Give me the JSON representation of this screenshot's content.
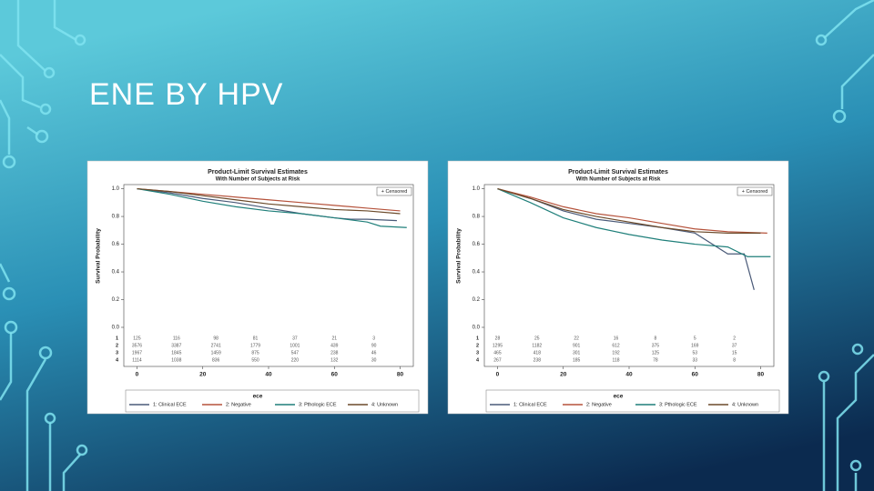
{
  "slide": {
    "title": "ENE BY HPV"
  },
  "chart_data": [
    {
      "type": "line",
      "title": "Product-Limit Survival Estimates",
      "subtitle": "With Number of Subjects at Risk",
      "y_label": "Survival Probability",
      "legend_title": "ece",
      "censored_label": "+ Censored",
      "xlim": [
        -4,
        84
      ],
      "xticks": [
        0,
        20,
        40,
        60,
        80
      ],
      "ylim": [
        0,
        1.03
      ],
      "yticks": [
        {
          "value": 0,
          "label": "0.0"
        },
        {
          "value": 0.2,
          "label": "0.2"
        },
        {
          "value": 0.4,
          "label": "0.4"
        },
        {
          "value": 0.6,
          "label": "0.6"
        },
        {
          "value": 0.8,
          "label": "0.8"
        },
        {
          "value": 1,
          "label": "1.0"
        }
      ],
      "series": [
        {
          "name": "1: Clinical ECE",
          "color": "#4a5a78",
          "x": [
            0,
            10,
            20,
            30,
            40,
            50,
            60,
            65,
            70,
            79
          ],
          "values": [
            1,
            0.97,
            0.93,
            0.9,
            0.86,
            0.82,
            0.79,
            0.78,
            0.78,
            0.77
          ]
        },
        {
          "name": "2: Negative",
          "color": "#b5523b",
          "x": [
            0,
            10,
            20,
            30,
            40,
            50,
            60,
            70,
            80
          ],
          "values": [
            1,
            0.98,
            0.96,
            0.94,
            0.92,
            0.9,
            0.88,
            0.86,
            0.84
          ]
        },
        {
          "name": "3: Pthologic ECE",
          "color": "#1f7f7a",
          "x": [
            0,
            10,
            20,
            30,
            40,
            50,
            60,
            70,
            74,
            82
          ],
          "values": [
            1,
            0.96,
            0.91,
            0.87,
            0.84,
            0.82,
            0.79,
            0.76,
            0.73,
            0.72
          ]
        },
        {
          "name": "4: Unknown",
          "color": "#6b4a2a",
          "x": [
            0,
            10,
            20,
            30,
            40,
            50,
            60,
            70,
            80
          ],
          "values": [
            1,
            0.98,
            0.95,
            0.92,
            0.89,
            0.87,
            0.85,
            0.84,
            0.82
          ]
        }
      ],
      "risk_table": {
        "times": [
          0,
          12,
          24,
          36,
          48,
          60,
          72
        ],
        "groups": [
          {
            "label": "1",
            "counts": [
              125,
              116,
              98,
              81,
              37,
              21,
              3
            ]
          },
          {
            "label": "2",
            "counts": [
              3576,
              3387,
              2741,
              1779,
              1001,
              439,
              90
            ]
          },
          {
            "label": "3",
            "counts": [
              1967,
              1845,
              1459,
              875,
              547,
              238,
              46
            ]
          },
          {
            "label": "4",
            "counts": [
              1114,
              1038,
              836,
              550,
              220,
              132,
              30
            ]
          }
        ]
      }
    },
    {
      "type": "line",
      "title": "Product-Limit Survival Estimates",
      "subtitle": "With Number of Subjects at Risk",
      "y_label": "Survival Probability",
      "legend_title": "ece",
      "censored_label": "+ Censored",
      "xlim": [
        -4,
        84
      ],
      "xticks": [
        0,
        20,
        40,
        60,
        80
      ],
      "ylim": [
        0,
        1.03
      ],
      "yticks": [
        {
          "value": 0,
          "label": "0.0"
        },
        {
          "value": 0.2,
          "label": "0.2"
        },
        {
          "value": 0.4,
          "label": "0.4"
        },
        {
          "value": 0.6,
          "label": "0.6"
        },
        {
          "value": 0.8,
          "label": "0.8"
        },
        {
          "value": 1,
          "label": "1.0"
        }
      ],
      "series": [
        {
          "name": "1: Clinical ECE",
          "color": "#4a5a78",
          "x": [
            0,
            10,
            20,
            30,
            40,
            50,
            60,
            70,
            75,
            78
          ],
          "values": [
            1,
            0.93,
            0.84,
            0.78,
            0.75,
            0.72,
            0.68,
            0.53,
            0.53,
            0.27
          ]
        },
        {
          "name": "2: Negative",
          "color": "#b5523b",
          "x": [
            0,
            10,
            20,
            30,
            40,
            50,
            60,
            70,
            82
          ],
          "values": [
            1,
            0.94,
            0.87,
            0.82,
            0.79,
            0.75,
            0.71,
            0.69,
            0.68
          ]
        },
        {
          "name": "3: Pthologic ECE",
          "color": "#1f7f7a",
          "x": [
            0,
            10,
            20,
            30,
            40,
            50,
            60,
            70,
            76,
            83
          ],
          "values": [
            1,
            0.9,
            0.79,
            0.72,
            0.67,
            0.63,
            0.6,
            0.58,
            0.51,
            0.51
          ]
        },
        {
          "name": "4: Unknown",
          "color": "#6b4a2a",
          "x": [
            0,
            10,
            20,
            30,
            40,
            50,
            60,
            70,
            80
          ],
          "values": [
            1,
            0.93,
            0.85,
            0.8,
            0.76,
            0.72,
            0.69,
            0.68,
            0.68
          ]
        }
      ],
      "risk_table": {
        "times": [
          0,
          12,
          24,
          36,
          48,
          60,
          72
        ],
        "groups": [
          {
            "label": "1",
            "counts": [
              28,
              25,
              22,
              16,
              8,
              5,
              2
            ]
          },
          {
            "label": "2",
            "counts": [
              1295,
              1182,
              901,
              612,
              375,
              169,
              37
            ]
          },
          {
            "label": "3",
            "counts": [
              465,
              418,
              301,
              192,
              125,
              53,
              15
            ]
          },
          {
            "label": "4",
            "counts": [
              267,
              238,
              185,
              118,
              78,
              33,
              8
            ]
          }
        ]
      }
    }
  ]
}
